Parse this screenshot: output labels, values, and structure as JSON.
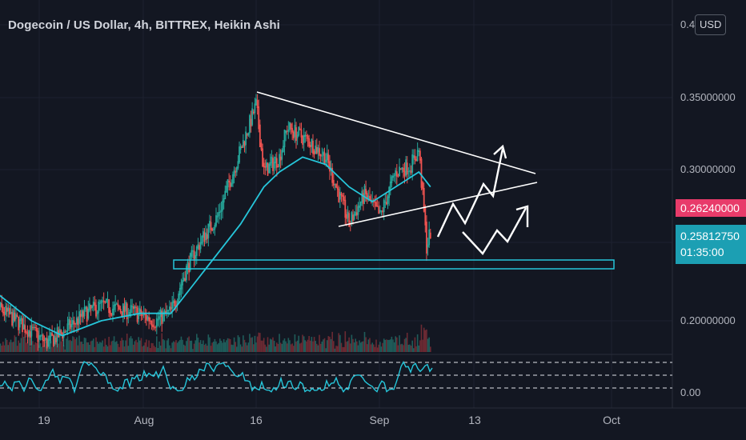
{
  "header": {
    "title": "Dogecoin / US Dollar, 4h, BITTREX, Heikin Ashi",
    "currency_badge": "USD"
  },
  "price_axis": {
    "labels": [
      "0.4",
      "0.35000000",
      "0.30000000",
      "0.20000000"
    ],
    "current_price": "0.26240000",
    "last_price": "0.25812750",
    "countdown": "01:35:00",
    "oscillator_label": "0.00"
  },
  "time_axis": {
    "labels": [
      "19",
      "Aug",
      "16",
      "Sep",
      "13",
      "Oct"
    ]
  },
  "colors": {
    "background": "#131722",
    "up_candle": "#26a69a",
    "down_candle": "#ef5350",
    "moving_average": "#26c6da",
    "current_tag": "#e83b6a",
    "last_tag": "#1c9fb3",
    "drawing": "#ffffff"
  },
  "chart_data": {
    "type": "candlestick",
    "symbol": "DOGE/USD",
    "timeframe": "4h",
    "exchange": "BITTREX",
    "candle_style": "Heikin Ashi",
    "y_scale": "linear",
    "ylim": [
      0.18,
      0.41
    ],
    "y_ticks": [
      0.2,
      0.3,
      0.35,
      0.4
    ],
    "x_ticks": [
      "19",
      "Aug",
      "16",
      "Sep",
      "13",
      "Oct"
    ],
    "close_path": [
      {
        "x": "Jul 12",
        "y": 0.215
      },
      {
        "x": "Jul 16",
        "y": 0.2
      },
      {
        "x": "Jul 20",
        "y": 0.185
      },
      {
        "x": "Jul 22",
        "y": 0.192
      },
      {
        "x": "Jul 25",
        "y": 0.205
      },
      {
        "x": "Jul 27",
        "y": 0.21
      },
      {
        "x": "Jul 31",
        "y": 0.206
      },
      {
        "x": "Aug 3",
        "y": 0.2
      },
      {
        "x": "Aug 5",
        "y": 0.206
      },
      {
        "x": "Aug 7",
        "y": 0.235
      },
      {
        "x": "Aug 9",
        "y": 0.255
      },
      {
        "x": "Aug 11",
        "y": 0.27
      },
      {
        "x": "Aug 13",
        "y": 0.3
      },
      {
        "x": "Aug 15",
        "y": 0.33
      },
      {
        "x": "Aug 16",
        "y": 0.345
      },
      {
        "x": "Aug 17",
        "y": 0.3
      },
      {
        "x": "Aug 19",
        "y": 0.31
      },
      {
        "x": "Aug 20",
        "y": 0.33
      },
      {
        "x": "Aug 23",
        "y": 0.32
      },
      {
        "x": "Aug 25",
        "y": 0.31
      },
      {
        "x": "Aug 27",
        "y": 0.28
      },
      {
        "x": "Aug 28",
        "y": 0.265
      },
      {
        "x": "Aug 30",
        "y": 0.285
      },
      {
        "x": "Sep 1",
        "y": 0.27
      },
      {
        "x": "Sep 3",
        "y": 0.3
      },
      {
        "x": "Sep 5",
        "y": 0.305
      },
      {
        "x": "Sep 6",
        "y": 0.315
      },
      {
        "x": "Sep 7",
        "y": 0.25
      },
      {
        "x": "Sep 7.5",
        "y": 0.26
      }
    ],
    "moving_average": [
      {
        "x": "Jul 12",
        "y": 0.225
      },
      {
        "x": "Jul 18",
        "y": 0.2
      },
      {
        "x": "Jul 22",
        "y": 0.19
      },
      {
        "x": "Jul 27",
        "y": 0.2
      },
      {
        "x": "Aug 1",
        "y": 0.205
      },
      {
        "x": "Aug 5",
        "y": 0.205
      },
      {
        "x": "Aug 8",
        "y": 0.225
      },
      {
        "x": "Aug 11",
        "y": 0.245
      },
      {
        "x": "Aug 14",
        "y": 0.265
      },
      {
        "x": "Aug 17",
        "y": 0.29
      },
      {
        "x": "Aug 19",
        "y": 0.3
      },
      {
        "x": "Aug 22",
        "y": 0.31
      },
      {
        "x": "Aug 25",
        "y": 0.305
      },
      {
        "x": "Aug 28",
        "y": 0.29
      },
      {
        "x": "Aug 31",
        "y": 0.28
      },
      {
        "x": "Sep 3",
        "y": 0.29
      },
      {
        "x": "Sep 6",
        "y": 0.3
      },
      {
        "x": "Sep 7.5",
        "y": 0.29
      }
    ],
    "drawings": {
      "support_zone": [
        0.233,
        0.239
      ],
      "descending_trendline": [
        {
          "x": "Aug 16",
          "y": 0.352
        },
        {
          "x": "Sep 17",
          "y": 0.302
        }
      ],
      "ascending_trendline": [
        {
          "x": "Aug 28",
          "y": 0.264
        },
        {
          "x": "Sep 17",
          "y": 0.296
        }
      ]
    },
    "oscillator": {
      "levels": [
        0,
        20,
        80,
        100
      ]
    }
  }
}
